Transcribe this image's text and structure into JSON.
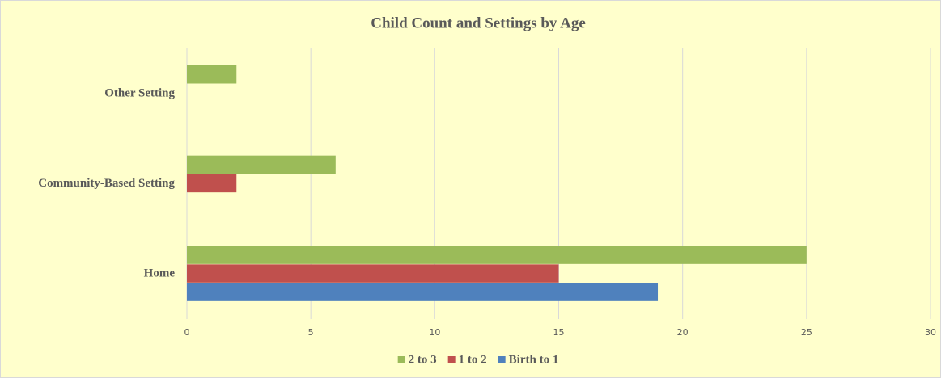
{
  "chart_data": {
    "type": "bar",
    "orientation": "horizontal",
    "title": "Child Count and Settings by Age",
    "categories": [
      "Other Setting",
      "Community-Based Setting",
      "Home"
    ],
    "series": [
      {
        "name": "2 to 3",
        "color": "#9bbb59",
        "values": [
          2,
          6,
          25
        ]
      },
      {
        "name": "1 to 2",
        "color": "#c0504d",
        "values": [
          0,
          2,
          15
        ]
      },
      {
        "name": "Birth to 1",
        "color": "#4f81bd",
        "values": [
          0,
          0,
          19
        ]
      }
    ],
    "xlim": [
      0,
      30
    ],
    "xticks": [
      0,
      5,
      10,
      15,
      20,
      25,
      30
    ],
    "grid": true,
    "legend": "bottom"
  }
}
